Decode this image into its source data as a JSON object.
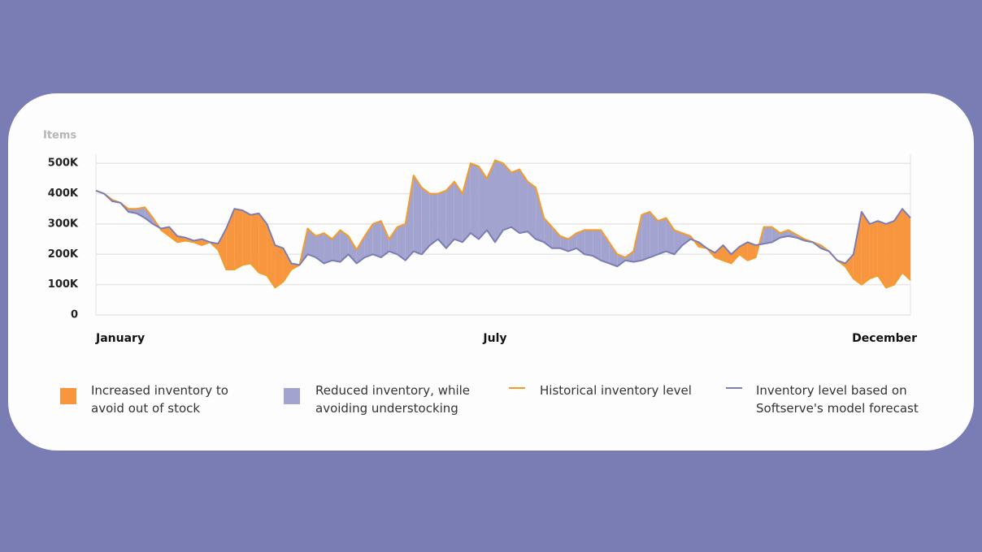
{
  "chart_data": {
    "type": "line",
    "ylabel": "Items",
    "categories": [
      "January",
      null,
      null,
      null,
      null,
      null,
      null,
      null,
      null,
      null,
      null,
      null,
      null,
      null,
      null,
      null,
      null,
      null,
      null,
      null,
      null,
      null,
      null,
      null,
      null,
      null,
      null,
      null,
      null,
      null,
      null,
      null,
      null,
      null,
      null,
      null,
      null,
      null,
      null,
      null,
      null,
      null,
      null,
      null,
      null,
      null,
      null,
      null,
      null,
      "July",
      null,
      null,
      null,
      null,
      null,
      null,
      null,
      null,
      null,
      null,
      null,
      null,
      null,
      null,
      null,
      null,
      null,
      null,
      null,
      null,
      null,
      null,
      null,
      null,
      null,
      null,
      null,
      null,
      null,
      null,
      null,
      null,
      null,
      null,
      null,
      null,
      null,
      null,
      null,
      null,
      null,
      null,
      null,
      null,
      null,
      null,
      null,
      null,
      null,
      null,
      "December"
    ],
    "series": [
      {
        "name": "Historical inventory level",
        "color": "#f39c2b",
        "values": [
          410000,
          400000,
          380000,
          370000,
          350000,
          350000,
          355000,
          320000,
          280000,
          260000,
          240000,
          245000,
          240000,
          230000,
          240000,
          215000,
          150000,
          150000,
          165000,
          170000,
          140000,
          130000,
          90000,
          110000,
          150000,
          165000,
          285000,
          260000,
          270000,
          250000,
          280000,
          260000,
          215000,
          260000,
          300000,
          310000,
          250000,
          290000,
          300000,
          460000,
          420000,
          400000,
          400000,
          410000,
          440000,
          400000,
          500000,
          490000,
          450000,
          510000,
          500000,
          470000,
          480000,
          440000,
          420000,
          320000,
          290000,
          260000,
          250000,
          270000,
          280000,
          280000,
          280000,
          240000,
          200000,
          190000,
          210000,
          330000,
          340000,
          310000,
          320000,
          280000,
          270000,
          260000,
          225000,
          220000,
          190000,
          180000,
          170000,
          200000,
          180000,
          190000,
          290000,
          290000,
          270000,
          280000,
          265000,
          250000,
          240000,
          230000,
          210000,
          180000,
          160000,
          120000,
          100000,
          120000,
          130000,
          90000,
          100000,
          140000,
          115000
        ]
      },
      {
        "name": "Inventory level based on Softserve's model forecast",
        "color": "#7b7db5",
        "values": [
          410000,
          400000,
          375000,
          370000,
          340000,
          335000,
          320000,
          300000,
          285000,
          290000,
          260000,
          255000,
          245000,
          250000,
          240000,
          235000,
          285000,
          350000,
          345000,
          330000,
          335000,
          300000,
          230000,
          220000,
          170000,
          165000,
          200000,
          190000,
          170000,
          180000,
          175000,
          200000,
          170000,
          190000,
          200000,
          190000,
          210000,
          200000,
          180000,
          210000,
          200000,
          230000,
          250000,
          220000,
          250000,
          240000,
          270000,
          250000,
          280000,
          240000,
          280000,
          290000,
          270000,
          275000,
          250000,
          240000,
          220000,
          220000,
          210000,
          220000,
          200000,
          195000,
          180000,
          170000,
          160000,
          180000,
          175000,
          180000,
          190000,
          200000,
          210000,
          200000,
          230000,
          250000,
          240000,
          220000,
          205000,
          230000,
          200000,
          225000,
          240000,
          230000,
          235000,
          240000,
          255000,
          260000,
          255000,
          245000,
          240000,
          220000,
          210000,
          180000,
          170000,
          200000,
          340000,
          300000,
          310000,
          300000,
          310000,
          350000,
          320000
        ]
      }
    ],
    "fills": [
      {
        "name": "Increased inventory to avoid out of stock",
        "color": "#f7963f"
      },
      {
        "name": "Reduced inventory, while avoiding understocking",
        "color": "#a3a3cf"
      }
    ],
    "ylim": [
      0,
      530000
    ],
    "yticks": [
      0,
      {
        "value": 100000,
        "label": "100K"
      },
      {
        "value": 200000,
        "label": "200K"
      },
      {
        "value": 300000,
        "label": "300K"
      },
      {
        "value": 400000,
        "label": "400K"
      },
      {
        "value": 500000,
        "label": "500K"
      }
    ],
    "grid": true
  }
}
